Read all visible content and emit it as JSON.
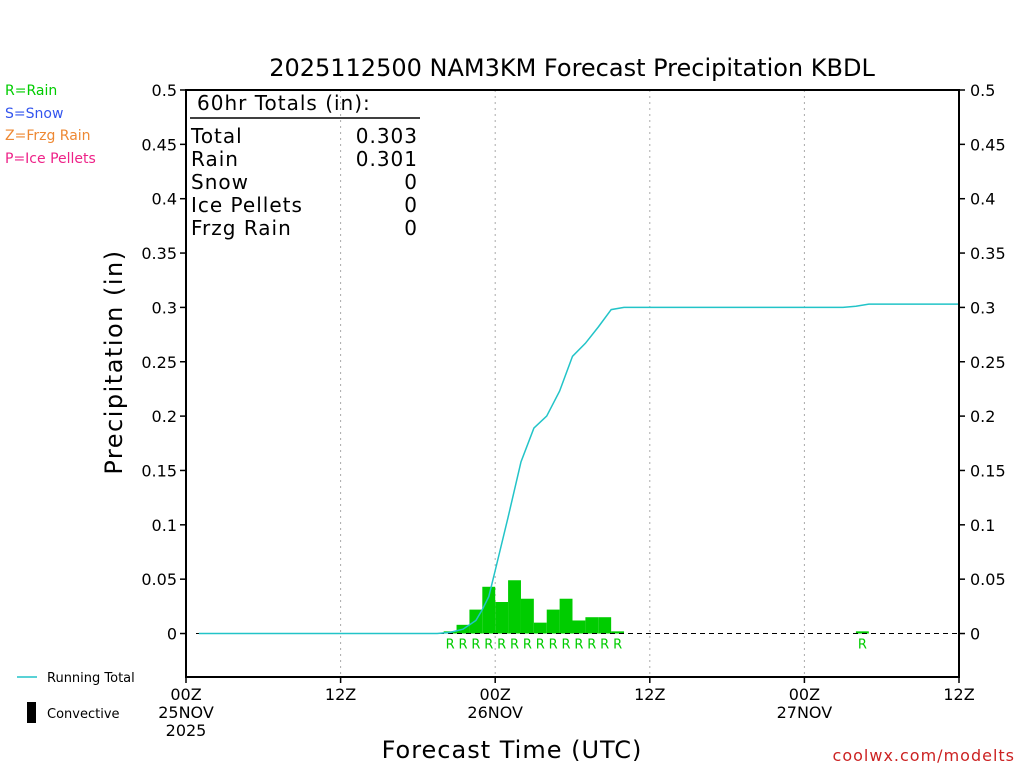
{
  "colors": {
    "rain": "#00cc00",
    "snow": "#3355ee",
    "frzg": "#ee8833",
    "ice": "#ee2288",
    "running_total": "#22c4c8",
    "convective": "#000000",
    "credit": "#cc2222",
    "grid": "#aaaaaa"
  },
  "legend_left": {
    "rain": "R=Rain",
    "snow": "S=Snow",
    "frzg": "Z=Frzg Rain",
    "ice": "P=Ice Pellets"
  },
  "legend_bottom": {
    "running_total": "Running Total",
    "convective": "Convective"
  },
  "totals_box": {
    "header": "60hr Totals (in):",
    "rows": [
      {
        "label": "Total",
        "value": "0.303"
      },
      {
        "label": "Rain",
        "value": "0.301"
      },
      {
        "label": "Snow",
        "value": "0"
      },
      {
        "label": "Ice Pellets",
        "value": "0"
      },
      {
        "label": "Frzg Rain",
        "value": "0"
      }
    ]
  },
  "credit": "coolwx.com/modelts",
  "chart_data": {
    "type": "bar",
    "title": "2025112500 NAM3KM Forecast Precipitation KBDL",
    "xlabel": "Forecast Time (UTC)",
    "ylabel": "Precipitation (in)",
    "xlim": [
      0,
      60
    ],
    "ylim": [
      -0.04,
      0.5
    ],
    "y_ticks": [
      0,
      0.05,
      0.1,
      0.15,
      0.2,
      0.25,
      0.3,
      0.35,
      0.4,
      0.45,
      0.5
    ],
    "y_tick_labels": [
      "0",
      "0.05",
      "0.1",
      "0.15",
      "0.2",
      "0.25",
      "0.3",
      "0.35",
      "0.4",
      "0.45",
      "0.5"
    ],
    "x_ticks": [
      {
        "hour": 0,
        "lines": [
          "00Z",
          "25NOV",
          "2025"
        ]
      },
      {
        "hour": 12,
        "lines": [
          "12Z"
        ]
      },
      {
        "hour": 24,
        "lines": [
          "00Z",
          "26NOV"
        ]
      },
      {
        "hour": 36,
        "lines": [
          "12Z"
        ]
      },
      {
        "hour": 48,
        "lines": [
          "00Z",
          "27NOV"
        ]
      },
      {
        "hour": 60,
        "lines": [
          "12Z"
        ]
      }
    ],
    "grid": "vertical dotted",
    "series": [
      {
        "name": "Hourly Rain",
        "type": "bar",
        "hours": [
          21,
          22,
          23,
          24,
          25,
          26,
          27,
          28,
          29,
          30,
          31,
          32,
          33,
          34,
          53
        ],
        "values": [
          0.002,
          0.008,
          0.022,
          0.043,
          0.029,
          0.049,
          0.032,
          0.01,
          0.022,
          0.032,
          0.012,
          0.015,
          0.015,
          0.002,
          0.002
        ]
      },
      {
        "name": "Running Total",
        "type": "line",
        "hours": [
          1,
          19.5,
          20.5,
          21.5,
          22.5,
          23,
          23.5,
          24,
          25,
          26,
          27,
          28,
          29,
          30,
          31,
          32,
          33,
          34,
          35,
          50,
          51,
          52,
          53,
          60
        ],
        "values": [
          0,
          0,
          0.001,
          0.004,
          0.012,
          0.022,
          0.034,
          0.058,
          0.107,
          0.158,
          0.189,
          0.2,
          0.223,
          0.255,
          0.267,
          0.282,
          0.298,
          0.3,
          0.3,
          0.3,
          0.3,
          0.301,
          0.303,
          0.303
        ]
      }
    ],
    "ptype_labels": {
      "hours": [
        21,
        22,
        23,
        24,
        25,
        26,
        27,
        28,
        29,
        30,
        31,
        32,
        33,
        34,
        53
      ],
      "text": "R"
    }
  }
}
